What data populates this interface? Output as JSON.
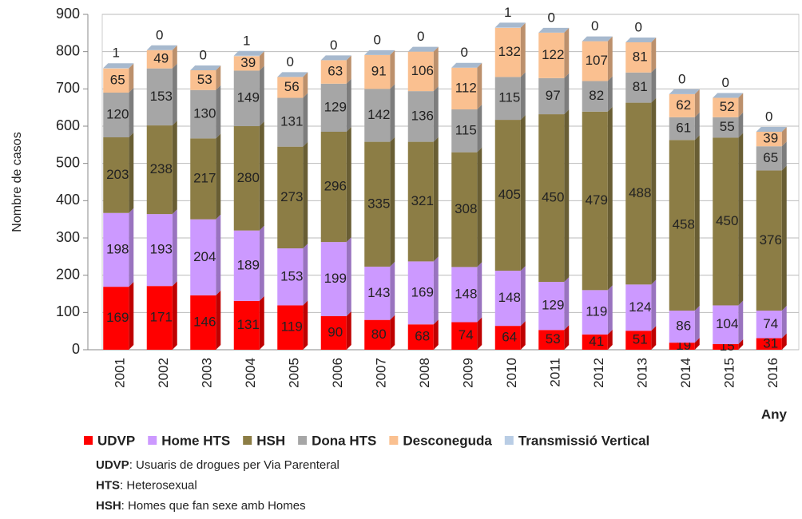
{
  "chart_data": {
    "type": "stacked_bar",
    "y_label": "Nombre de casos",
    "x_label": "Any",
    "categories": [
      "2001",
      "2002",
      "2003",
      "2004",
      "2005",
      "2006",
      "2007",
      "2008",
      "2009",
      "2010",
      "2011",
      "2012",
      "2013",
      "2014",
      "2015",
      "2016"
    ],
    "series": [
      {
        "name": "UDVP",
        "color": "#ff0000",
        "values": [
          169,
          171,
          146,
          131,
          119,
          90,
          80,
          68,
          74,
          64,
          53,
          41,
          51,
          19,
          15,
          31
        ]
      },
      {
        "name": "Home HTS",
        "color": "#cc99ff",
        "values": [
          198,
          193,
          204,
          189,
          153,
          199,
          143,
          169,
          148,
          148,
          129,
          119,
          124,
          86,
          104,
          74
        ]
      },
      {
        "name": "HSH",
        "color": "#8c7d45",
        "values": [
          203,
          238,
          217,
          280,
          273,
          296,
          335,
          321,
          308,
          405,
          450,
          479,
          488,
          458,
          450,
          376
        ]
      },
      {
        "name": "Dona HTS",
        "color": "#a6a6a6",
        "values": [
          120,
          153,
          130,
          149,
          131,
          129,
          142,
          136,
          115,
          115,
          97,
          82,
          81,
          61,
          55,
          65
        ]
      },
      {
        "name": "Desconeguda",
        "color": "#fac090",
        "values": [
          65,
          49,
          53,
          39,
          56,
          63,
          91,
          106,
          112,
          132,
          122,
          107,
          81,
          62,
          52,
          39
        ]
      },
      {
        "name": "Transmissió Vertical",
        "color": "#b9cde5",
        "values": [
          1,
          0,
          0,
          1,
          0,
          0,
          0,
          0,
          0,
          1,
          0,
          0,
          0,
          0,
          0,
          0
        ]
      }
    ],
    "ylim": [
      0,
      900
    ],
    "yticks": [
      0,
      100,
      200,
      300,
      400,
      500,
      600,
      700,
      800,
      900
    ],
    "grid": true,
    "legend": "bottom"
  },
  "notes": [
    {
      "term": "UDVP",
      "text": ": Usuaris de drogues per Via Parenteral"
    },
    {
      "term": "HTS",
      "text": ": Heterosexual"
    },
    {
      "term": "HSH",
      "text": ": Homes que fan sexe amb Homes"
    }
  ]
}
